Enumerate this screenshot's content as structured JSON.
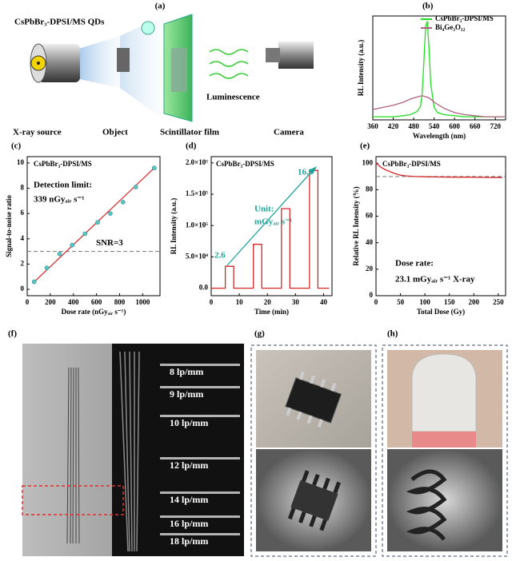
{
  "panels": {
    "a": "(a)",
    "f": "(f)",
    "g": "(g)",
    "h": "(h)"
  },
  "schematic": {
    "material": "CsPbBr₃-DPSI/MS QDs",
    "luminescence": "Luminescence",
    "source": "X-ray source",
    "object": "Object",
    "film": "Scintillator film",
    "camera": "Camera"
  },
  "resolution_labels": [
    "8 lp/mm",
    "9 lp/mm",
    "10 lp/mm",
    "12 lp/mm",
    "14 lp/mm",
    "16 lp/mm",
    "18 lp/mm"
  ],
  "chart_data": [
    {
      "type": "line",
      "label": "(b)",
      "xlabel": "Wavelength (nm)",
      "ylabel": "RL Intensity (a.u.)",
      "x": [
        360,
        390,
        420,
        450,
        470,
        490,
        500,
        505,
        510,
        515,
        520,
        525,
        530,
        540,
        550,
        570,
        600,
        630,
        660,
        690,
        720,
        750
      ],
      "series": [
        {
          "name": "CsPbBr₃-DPSI/MS",
          "color": "#22dd22",
          "values": [
            0.03,
            0.03,
            0.03,
            0.04,
            0.05,
            0.08,
            0.13,
            0.25,
            0.55,
            0.9,
            0.95,
            0.7,
            0.35,
            0.12,
            0.07,
            0.05,
            0.04,
            0.03,
            0.03,
            0.03,
            0.03,
            0.03
          ]
        },
        {
          "name": "Bi₄Ge₃O₁₂",
          "color": "#b0607e",
          "values": [
            0.1,
            0.12,
            0.14,
            0.17,
            0.2,
            0.22,
            0.23,
            0.23,
            0.23,
            0.22,
            0.22,
            0.21,
            0.2,
            0.17,
            0.15,
            0.11,
            0.07,
            0.05,
            0.04,
            0.03,
            0.03,
            0.03
          ]
        }
      ],
      "xlim": [
        360,
        750
      ],
      "xticks": [
        360,
        420,
        480,
        540,
        600,
        660,
        720
      ],
      "ylim": [
        0,
        1
      ],
      "legend": "upper-right"
    },
    {
      "type": "scatter",
      "label": "(c)",
      "xlabel": "Dose rate (nGyₐᵢᵣ s⁻¹)",
      "ylabel": "Signal-to-noise ratio",
      "x": [
        60,
        170,
        280,
        390,
        500,
        610,
        720,
        830,
        940,
        1100
      ],
      "series": [
        {
          "color": "#5bc8c8",
          "values": [
            0.6,
            1.7,
            2.8,
            3.5,
            4.4,
            5.3,
            6.0,
            6.9,
            8.1,
            9.6
          ]
        }
      ],
      "fit": {
        "color": "#d62728",
        "x": [
          50,
          1100
        ],
        "values": [
          0.5,
          9.6
        ]
      },
      "hline": {
        "value": 3,
        "label": "SNR=3"
      },
      "annotations": [
        {
          "text": "CsPbBr₃-DPSI/MS",
          "color": "#000000"
        },
        {
          "text": "Detection limit:",
          "color": "#000000"
        },
        {
          "text": "339 nGyₐᵢᵣ s⁻¹",
          "color": "#000000"
        }
      ],
      "xlim": [
        0,
        1150
      ],
      "xticks": [
        0,
        200,
        400,
        600,
        800,
        1000
      ],
      "ylim": [
        -0.5,
        10.5
      ],
      "yticks": [
        0,
        2,
        4,
        6,
        8,
        10
      ]
    },
    {
      "type": "line",
      "label": "(d)",
      "xlabel": "Time (min)",
      "ylabel": "RL Intensity (a.u.)",
      "x": [
        0,
        5,
        5,
        8,
        8,
        15,
        15,
        18,
        18,
        25,
        25,
        28,
        28,
        35,
        35,
        38,
        38,
        42
      ],
      "series": [
        {
          "color": "#d62728",
          "values": [
            0,
            0,
            35000,
            35000,
            0,
            0,
            70000,
            70000,
            0,
            0,
            127000,
            127000,
            0,
            0,
            188000,
            188000,
            0,
            0
          ]
        }
      ],
      "annotations": [
        {
          "text": "CsPbBr₃-DPSI/MS",
          "color": "#000000"
        },
        {
          "text": "16.9",
          "color": "#1aa39a"
        },
        {
          "text": "Unit:",
          "color": "#1aa39a"
        },
        {
          "text": "mGyₐᵢᵣ s⁻¹",
          "color": "#1aa39a"
        },
        {
          "text": "2.6",
          "color": "#1aa39a"
        }
      ],
      "xlim": [
        0,
        43
      ],
      "xticks": [
        0,
        10,
        20,
        30,
        40
      ],
      "ylim": [
        -12000,
        210000
      ],
      "yticks": [
        {
          "value": 0,
          "label": "0.0"
        },
        {
          "value": 50000,
          "label": "5.0×10⁴"
        },
        {
          "value": 100000,
          "label": "1.0×10⁵"
        },
        {
          "value": 150000,
          "label": "1.5×10⁵"
        },
        {
          "value": 200000,
          "label": "2.0×10⁵"
        }
      ]
    },
    {
      "type": "line",
      "label": "(e)",
      "xlabel": "Total Dose (Gy)",
      "ylabel": "Relative RL Intensity (%)",
      "x": [
        0,
        5,
        10,
        20,
        30,
        40,
        50,
        60,
        80,
        100,
        130,
        160,
        190,
        220,
        250,
        258
      ],
      "series": [
        {
          "color": "#d62728",
          "values": [
            100,
            98.5,
            97,
            95,
            93.5,
            92,
            91,
            90.5,
            90,
            89.8,
            89.6,
            89.5,
            89.5,
            89.3,
            89.2,
            89.2
          ]
        }
      ],
      "hline": {
        "value": 90
      },
      "annotations": [
        {
          "text": "CsPbBr₃-DPSI/MS",
          "color": "#000000"
        },
        {
          "text": "Dose rate:",
          "color": "#000000"
        },
        {
          "text": "23.1 mGyₐᵢᵣ s⁻¹ X-ray",
          "color": "#000000"
        }
      ],
      "xlim": [
        0,
        265
      ],
      "xticks": [
        0,
        50,
        100,
        150,
        200,
        250
      ],
      "ylim": [
        0,
        105
      ],
      "yticks": [
        0,
        20,
        40,
        60,
        80,
        100
      ]
    }
  ]
}
